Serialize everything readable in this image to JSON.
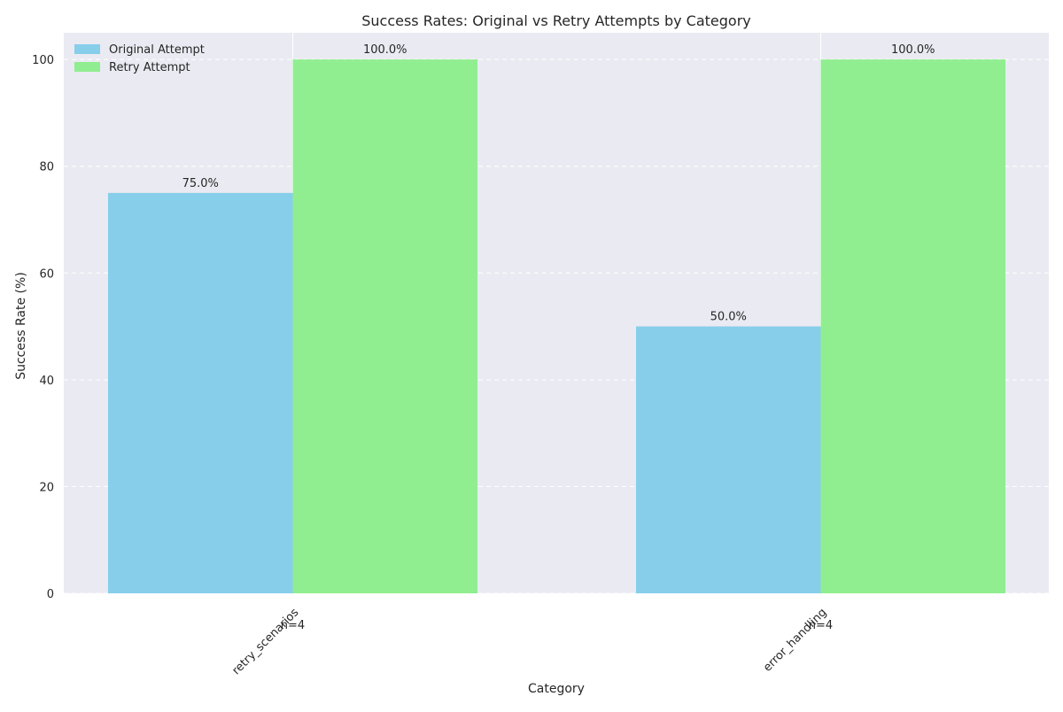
{
  "chart_data": {
    "type": "bar",
    "title": "Success Rates: Original vs Retry Attempts by Category",
    "xlabel": "Category",
    "ylabel": "Success Rate (%)",
    "categories": [
      "retry_scenarios",
      "error_handling"
    ],
    "sample_sizes": [
      "n=4",
      "n=4"
    ],
    "series": [
      {
        "name": "Original Attempt",
        "values": [
          75.0,
          50.0
        ],
        "labels": [
          "75.0%",
          "50.0%"
        ],
        "color": "#87CEEB"
      },
      {
        "name": "Retry Attempt",
        "values": [
          100.0,
          100.0
        ],
        "labels": [
          "100.0%",
          "100.0%"
        ],
        "color": "#90EE90"
      }
    ],
    "ylim": [
      0,
      105
    ],
    "yticks": [
      0,
      20,
      40,
      60,
      80,
      100
    ],
    "ytick_labels": [
      "0",
      "20",
      "40",
      "60",
      "80",
      "100"
    ],
    "grid": "y dashed",
    "legend_position": "upper-left",
    "background_color": "#EAEAF2"
  }
}
